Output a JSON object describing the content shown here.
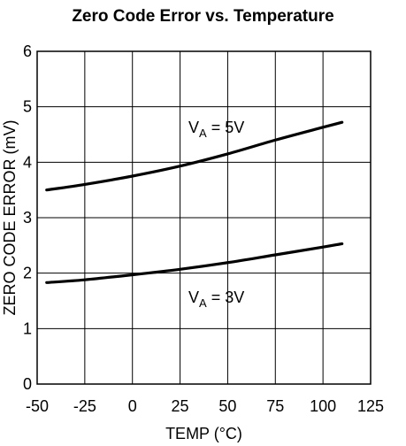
{
  "chart_data": {
    "type": "line",
    "title": "Zero Code Error vs. Temperature",
    "xlabel": "TEMP (°C)",
    "ylabel": "ZERO CODE ERROR (mV)",
    "xlim": [
      -50,
      125
    ],
    "ylim": [
      0,
      6
    ],
    "xticks": [
      -50,
      -25,
      0,
      25,
      50,
      75,
      100,
      125
    ],
    "yticks": [
      0,
      1,
      2,
      3,
      4,
      5,
      6
    ],
    "xtick_labels": [
      "-50",
      "-25",
      "0",
      "25",
      "50",
      "75",
      "100",
      "125"
    ],
    "ytick_labels": [
      "0",
      "1",
      "2",
      "3",
      "4",
      "5",
      "6"
    ],
    "grid": true,
    "series": [
      {
        "name": "VA = 5V",
        "label_main": "V",
        "label_sub": "A",
        "label_rest": " = 5V",
        "x": [
          -45,
          -25,
          0,
          25,
          50,
          75,
          100,
          110
        ],
        "y": [
          3.5,
          3.6,
          3.75,
          3.93,
          4.15,
          4.4,
          4.63,
          4.72
        ]
      },
      {
        "name": "VA = 3V",
        "label_main": "V",
        "label_sub": "A",
        "label_rest": " = 3V",
        "x": [
          -45,
          -25,
          0,
          25,
          50,
          75,
          100,
          110
        ],
        "y": [
          1.83,
          1.88,
          1.97,
          2.07,
          2.19,
          2.33,
          2.47,
          2.53
        ]
      }
    ]
  }
}
